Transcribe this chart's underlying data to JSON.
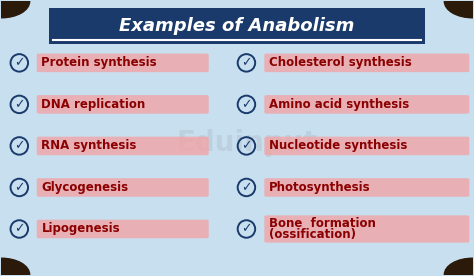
{
  "title": "Examples of Anabolism",
  "title_color": "#ffffff",
  "title_bg_color": "#1a3a6b",
  "bg_color": "#c8dff0",
  "left_items": [
    "Protein synthesis",
    "DNA replication",
    "RNA synthesis",
    "Glycogenesis",
    "Lipogenesis"
  ],
  "right_items": [
    "Cholesterol synthesis",
    "Amino acid synthesis",
    "Nucleotide synthesis",
    "Photosynthesis",
    "Bone  formation\n(ossification)"
  ],
  "item_text_color": "#8b0000",
  "item_bg_color": "#f4a0a0",
  "checkmark_color": "#1a3a6b",
  "watermark": "Eduinput"
}
